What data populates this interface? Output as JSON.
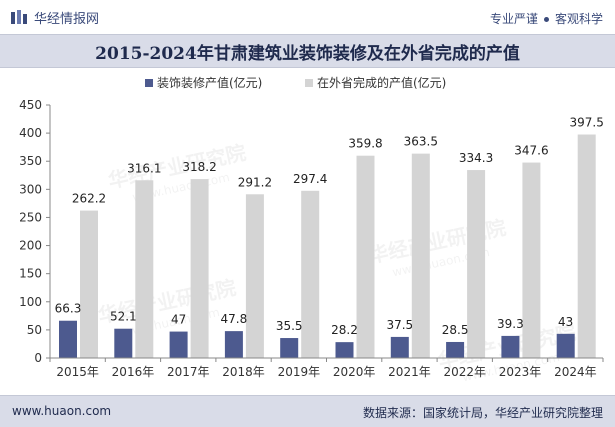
{
  "header": {
    "brand": "华经情报网",
    "tagline_left": "专业严谨",
    "tagline_right": "客观科学"
  },
  "title": "2015-2024年甘肃建筑业装饰装修及在外省完成的产值",
  "footer": {
    "website": "www.huaon.com",
    "source": "数据来源：国家统计局，华经产业研究院整理"
  },
  "watermark": {
    "cn": "华经产业研究院",
    "url": "www.huaon.com"
  },
  "chart_data": {
    "type": "bar",
    "categories": [
      "2015年",
      "2016年",
      "2017年",
      "2018年",
      "2019年",
      "2020年",
      "2021年",
      "2022年",
      "2023年",
      "2024年"
    ],
    "series": [
      {
        "name": "装饰装修产值(亿元)",
        "values": [
          66.3,
          52.1,
          47,
          47.8,
          35.5,
          28.2,
          37.5,
          28.5,
          39.3,
          43
        ],
        "color": "#4d5a8f"
      },
      {
        "name": "在外省完成的产值(亿元)",
        "values": [
          262.2,
          316.1,
          318.2,
          291.2,
          297.4,
          359.8,
          363.5,
          334.3,
          347.6,
          397.5
        ],
        "color": "#d4d4d4"
      }
    ],
    "ylim": [
      0,
      450
    ],
    "yticks": [
      0,
      50,
      100,
      150,
      200,
      250,
      300,
      350,
      400,
      450
    ],
    "legend": "top-left"
  }
}
